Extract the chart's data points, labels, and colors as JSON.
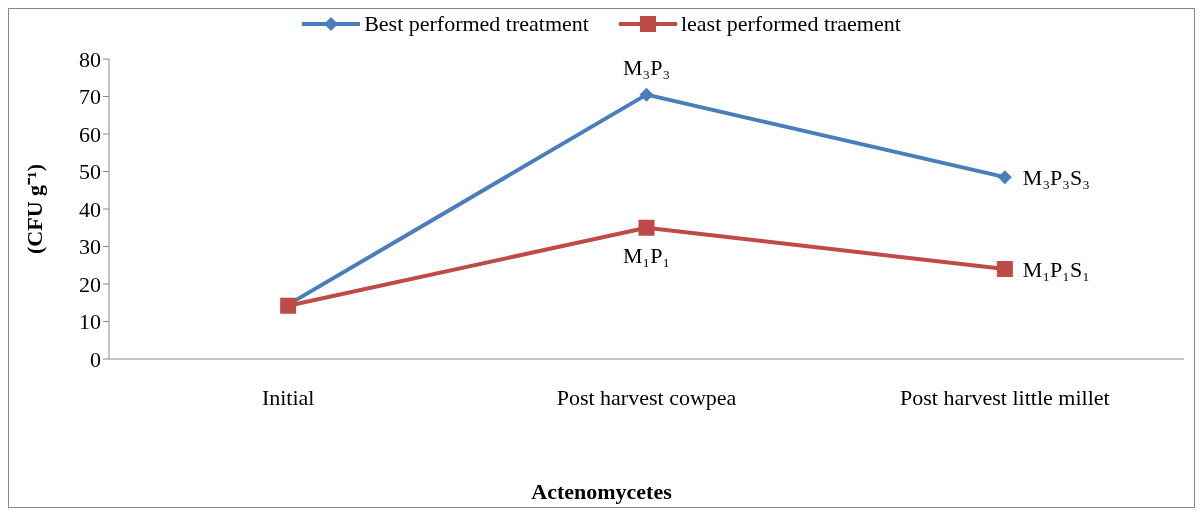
{
  "chart_data": {
    "type": "line",
    "xlabel": "Actenomycetes",
    "ylabel": "(CFU g⁻¹)",
    "categories": [
      "Initial",
      "Post harvest cowpea",
      "Post harvest little millet"
    ],
    "series": [
      {
        "name": "Best performed treatment",
        "color": "#4a7ebb",
        "values": [
          14.5,
          70.5,
          48.5
        ],
        "marker": "diamond"
      },
      {
        "name": "least performed traement",
        "color": "#be4b48",
        "values": [
          14.2,
          35,
          24
        ],
        "marker": "square"
      }
    ],
    "ylim": [
      0,
      80
    ],
    "yticks": [
      0,
      10,
      20,
      30,
      40,
      50,
      60,
      70,
      80
    ],
    "grid": false,
    "legend": "top",
    "annotations": [
      {
        "text": "M₃P₃",
        "x": "Post harvest cowpea",
        "y": 70.5
      },
      {
        "text": "M₁P₁",
        "x": "Post harvest cowpea",
        "y": 35
      },
      {
        "text": "M₃P₃S₃",
        "x": "Post harvest little millet",
        "y": 48.5
      },
      {
        "text": "M₁P₁S₁",
        "x": "Post harvest little millet",
        "y": 24
      }
    ]
  }
}
